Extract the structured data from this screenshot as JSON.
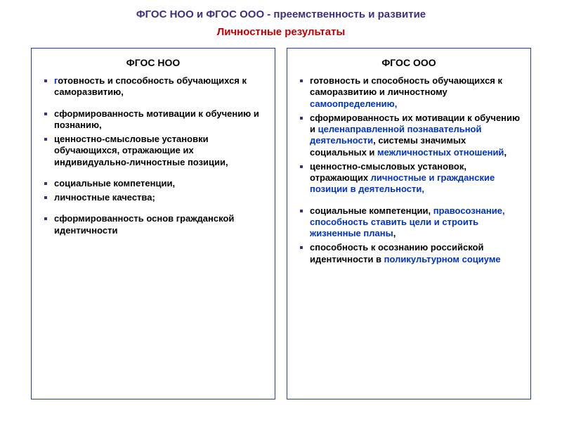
{
  "colors": {
    "title_color": "#3a3184",
    "subtitle_color": "#c00000",
    "border_color": "#1f3e9e",
    "highlight_color": "#0033cc",
    "text_color": "#000000",
    "background": "#ffffff"
  },
  "title": "ФГОС НОО и ФГОС ООО - преемственность и развитие",
  "subtitle": "Личностные результаты",
  "left": {
    "heading": "ФГОС НОО",
    "items": {
      "i1_a": "г",
      "i1_b": "отовность и способность обучающихся к саморазвитию,",
      "i2": "сформированность мотивации к обучению и познанию,",
      "i3": "ценностно-смысловые установки обучающихся, отражающие их индивидуально-личностные позиции,",
      "i4": "социальные компетенции,",
      "i5": "личностные качества;",
      "i6": "сформированность основ гражданской идентичности"
    }
  },
  "right": {
    "heading": "ФГОС ООО",
    "items": {
      "i1_a": "готовность и способность обучающихся к саморазвитию и личностному ",
      "i1_b": "самоопределению,",
      "i2_a": " сформированность их мотивации к обучению и ",
      "i2_b": "целенаправленной познавательной деятельности",
      "i2_c": ", системы значимых социальных и ",
      "i2_d": "межличностных отношений",
      "i2_e": ",",
      "i3_a": "ценностно-смысловых установок, отражающих ",
      "i3_b": "личностные и гражданские позиции в деятельности,",
      "i4_a": "социальные компетенции, ",
      "i4_b": "правосознание, способность ставить цели и строить жизненные планы",
      "i4_c": ",",
      "i5_a": "способность к осознанию российской идентичности в ",
      "i5_b": "поликультурном социуме"
    }
  }
}
